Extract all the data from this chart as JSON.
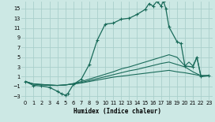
{
  "xlabel": "Humidex (Indice chaleur)",
  "bg_color": "#cce8e4",
  "line_color": "#1a6b5a",
  "grid_color": "#aacfcb",
  "xlim": [
    -0.5,
    23.5
  ],
  "ylim": [
    -3.8,
    16.5
  ],
  "yticks": [
    -3,
    -1,
    1,
    3,
    5,
    7,
    9,
    11,
    13,
    15
  ],
  "xticks": [
    0,
    1,
    2,
    3,
    4,
    5,
    6,
    7,
    8,
    9,
    10,
    11,
    12,
    13,
    14,
    15,
    16,
    17,
    18,
    19,
    20,
    21,
    22,
    23
  ],
  "series": [
    {
      "x": [
        0,
        1,
        2,
        3,
        4,
        4.5,
        5,
        5.3,
        6,
        7,
        8,
        9,
        10,
        11,
        12,
        13,
        14,
        15,
        15.5,
        16,
        16.5,
        17,
        17.3,
        17.6,
        18,
        19,
        19.5,
        20,
        21,
        21.5,
        22,
        23
      ],
      "y": [
        0,
        -0.8,
        -0.9,
        -1.2,
        -2.0,
        -2.5,
        -2.8,
        -2.5,
        -0.6,
        0.5,
        3.5,
        8.5,
        11.8,
        12.0,
        12.8,
        13.0,
        13.8,
        14.8,
        16.0,
        15.5,
        16.5,
        15.5,
        16.5,
        15.0,
        11.2,
        8.2,
        7.8,
        3.2,
        3.0,
        5.0,
        1.0,
        1.2
      ],
      "marker": true
    },
    {
      "x": [
        0,
        1,
        2,
        3,
        4,
        5,
        6,
        7,
        8,
        9,
        10,
        11,
        12,
        13,
        14,
        15,
        16,
        17,
        18,
        19,
        20,
        21,
        22,
        23
      ],
      "y": [
        0,
        -0.5,
        -0.7,
        -0.8,
        -0.8,
        -0.7,
        -0.5,
        -0.3,
        0.0,
        0.3,
        0.6,
        0.9,
        1.1,
        1.3,
        1.5,
        1.7,
        1.9,
        2.1,
        2.3,
        2.0,
        1.8,
        1.5,
        1.2,
        1.2
      ],
      "marker": false
    },
    {
      "x": [
        0,
        1,
        2,
        3,
        4,
        5,
        6,
        7,
        8,
        9,
        10,
        11,
        12,
        13,
        14,
        15,
        16,
        17,
        18,
        19,
        20,
        21,
        22,
        23
      ],
      "y": [
        0,
        -0.5,
        -0.6,
        -0.7,
        -0.8,
        -0.7,
        -0.5,
        -0.2,
        0.2,
        0.6,
        1.0,
        1.4,
        1.8,
        2.2,
        2.5,
        2.9,
        3.3,
        3.7,
        4.0,
        3.5,
        3.0,
        2.0,
        1.2,
        1.2
      ],
      "marker": false
    },
    {
      "x": [
        0,
        1,
        2,
        3,
        4,
        5,
        6,
        7,
        8,
        9,
        10,
        11,
        12,
        13,
        14,
        15,
        16,
        17,
        18,
        19,
        20,
        20.5,
        21,
        21.5,
        22,
        23
      ],
      "y": [
        0,
        -0.5,
        -0.6,
        -0.7,
        -0.8,
        -0.7,
        -0.4,
        0.0,
        0.5,
        1.0,
        1.5,
        2.0,
        2.6,
        3.0,
        3.5,
        4.0,
        4.5,
        5.0,
        5.5,
        5.0,
        3.2,
        4.0,
        3.2,
        5.0,
        1.2,
        1.2
      ],
      "marker": false
    }
  ]
}
